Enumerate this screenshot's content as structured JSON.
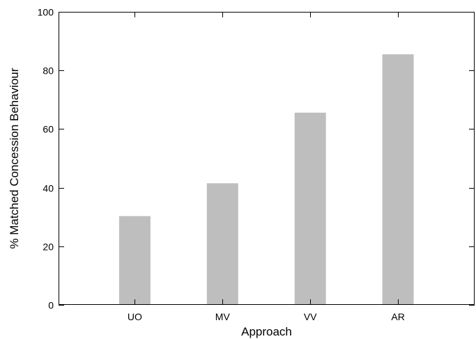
{
  "chart_data": {
    "type": "bar",
    "title": "",
    "xlabel": "Approach",
    "ylabel": "% Matched Concession Behaviour",
    "categories": [
      "UO",
      "MV",
      "VV",
      "AR"
    ],
    "values": [
      30.3,
      41.5,
      65.6,
      85.5
    ],
    "ylim": [
      0,
      100
    ],
    "yticks": [
      0,
      20,
      40,
      60,
      80,
      100
    ],
    "ytick_labels": [
      "0",
      "20",
      "40",
      "60",
      "80",
      "100"
    ],
    "grid": false,
    "legend": "none",
    "bar_color": "#bebebe"
  }
}
